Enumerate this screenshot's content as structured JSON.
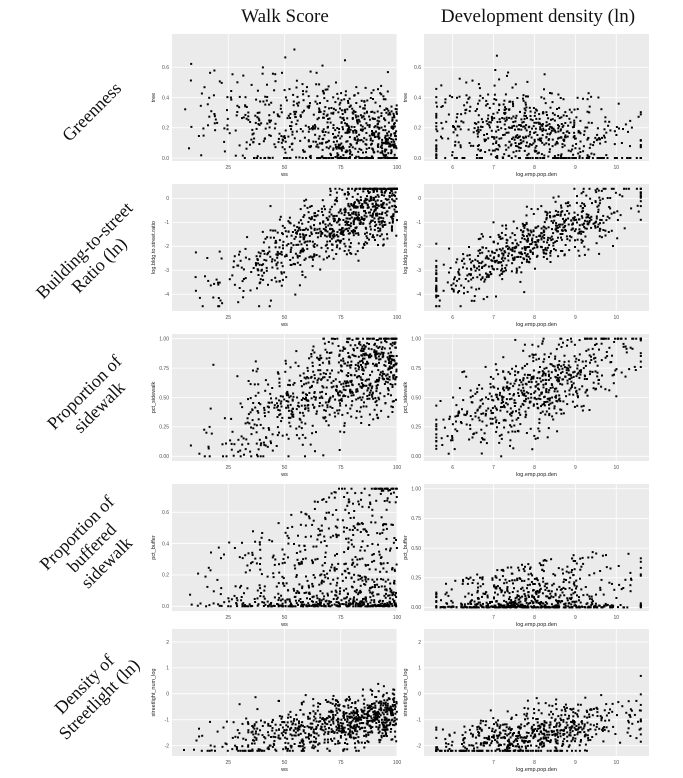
{
  "column_headers": [
    "Walk Score",
    "Development density (ln)"
  ],
  "row_labels": [
    "Greenness",
    "Building-to-street\nRatio (ln)",
    "Proportion of\nsidewalk",
    "Proportion of\nbuffered\nsidewalk",
    "Density of\nStreetlight (ln)"
  ],
  "colors": {
    "panel_bg": "#ebebeb",
    "grid": "#ffffff",
    "point": "#000000",
    "tick_text": "#4d4d4d"
  },
  "chart_data": [
    {
      "type": "scatter",
      "xlabel": "ws",
      "ylabel": "tree",
      "xlim": [
        0,
        100
      ],
      "ylim": [
        -0.02,
        0.82
      ],
      "xticks": [
        25,
        50,
        75,
        100
      ],
      "xtick_labels": [
        "25",
        "50",
        "75",
        "100"
      ],
      "yticks": [
        0.0,
        0.2,
        0.4,
        0.6
      ],
      "ytick_labels": [
        "0.0",
        "0.2",
        "0.4",
        "0.6"
      ],
      "grid": true,
      "legend": "none",
      "points": {
        "n": 800,
        "seed": 11,
        "x": {
          "dist": "skew_high",
          "min": 5,
          "max": 100,
          "power": 0.45
        },
        "y": {
          "dist": "neg_corr",
          "base": 0.32,
          "slope": -0.0018,
          "noise": 0.16,
          "min": 0.0,
          "max": 0.8
        }
      }
    },
    {
      "type": "scatter",
      "xlabel": "log.emp.pop.den",
      "ylabel": "tree",
      "xlim": [
        5.3,
        10.8
      ],
      "ylim": [
        -0.02,
        0.82
      ],
      "xticks": [
        6,
        7,
        8,
        9,
        10
      ],
      "xtick_labels": [
        "6",
        "7",
        "8",
        "9",
        "10"
      ],
      "yticks": [
        0.0,
        0.2,
        0.4,
        0.6
      ],
      "ytick_labels": [
        "0.0",
        "0.2",
        "0.4",
        "0.6"
      ],
      "grid": true,
      "legend": "none",
      "points": {
        "n": 650,
        "seed": 12,
        "x": {
          "dist": "normal",
          "mean": 8.0,
          "sd": 1.2,
          "min": 5.6,
          "max": 10.6
        },
        "y": {
          "dist": "neg_corr",
          "base": 0.36,
          "slope": -0.025,
          "noise": 0.15,
          "min": 0.0,
          "max": 0.8
        }
      }
    },
    {
      "type": "scatter",
      "xlabel": "ws",
      "ylabel": "log.bldg.to.street.ratio",
      "xlim": [
        0,
        100
      ],
      "ylim": [
        -4.7,
        0.6
      ],
      "xticks": [
        25,
        50,
        75,
        100
      ],
      "xtick_labels": [
        "25",
        "50",
        "75",
        "100"
      ],
      "yticks": [
        -4,
        -3,
        -2,
        -1,
        0
      ],
      "ytick_labels": [
        "-4",
        "-3",
        "-2",
        "-1",
        "0"
      ],
      "grid": true,
      "legend": "none",
      "points": {
        "n": 800,
        "seed": 21,
        "x": {
          "dist": "skew_high",
          "min": 5,
          "max": 100,
          "power": 0.45
        },
        "y": {
          "dist": "pos_corr",
          "base": -4.2,
          "slope": 0.042,
          "noise": 0.75,
          "min": -4.5,
          "max": 0.4
        }
      }
    },
    {
      "type": "scatter",
      "xlabel": "log.emp.pop.den",
      "ylabel": "log.bldg.to.street.ratio",
      "xlim": [
        5.3,
        10.8
      ],
      "ylim": [
        -4.7,
        0.6
      ],
      "xticks": [
        6,
        7,
        8,
        9,
        10
      ],
      "xtick_labels": [
        "6",
        "7",
        "8",
        "9",
        "10"
      ],
      "yticks": [
        -4,
        -3,
        -2,
        -1,
        0
      ],
      "ytick_labels": [
        "-4",
        "-3",
        "-2",
        "-1",
        "0"
      ],
      "grid": true,
      "legend": "none",
      "points": {
        "n": 650,
        "seed": 22,
        "x": {
          "dist": "normal",
          "mean": 8.0,
          "sd": 1.2,
          "min": 5.6,
          "max": 10.6
        },
        "y": {
          "dist": "pos_corr",
          "base": -7.8,
          "slope": 0.75,
          "noise": 0.6,
          "min": -4.5,
          "max": 0.4
        }
      }
    },
    {
      "type": "scatter",
      "xlabel": "ws",
      "ylabel": "pct_sidewalk",
      "xlim": [
        0,
        100
      ],
      "ylim": [
        -0.04,
        1.04
      ],
      "xticks": [
        25,
        50,
        75,
        100
      ],
      "xtick_labels": [
        "25",
        "50",
        "75",
        "100"
      ],
      "yticks": [
        0.0,
        0.25,
        0.5,
        0.75,
        1.0
      ],
      "ytick_labels": [
        "0.00",
        "0.25",
        "0.50",
        "0.75",
        "1.00"
      ],
      "grid": true,
      "legend": "none",
      "points": {
        "n": 800,
        "seed": 31,
        "x": {
          "dist": "skew_high",
          "min": 5,
          "max": 100,
          "power": 0.45
        },
        "y": {
          "dist": "pos_corr",
          "base": 0.0,
          "slope": 0.0085,
          "noise": 0.2,
          "min": 0.0,
          "max": 1.0
        }
      }
    },
    {
      "type": "scatter",
      "xlabel": "log.emp.pop.den",
      "ylabel": "pct_sidewalk",
      "xlim": [
        5.3,
        10.8
      ],
      "ylim": [
        -0.04,
        1.04
      ],
      "xticks": [
        6,
        7,
        8,
        9,
        10
      ],
      "xtick_labels": [
        "6",
        "7",
        "8",
        "9",
        "10"
      ],
      "yticks": [
        0.0,
        0.25,
        0.5,
        0.75,
        1.0
      ],
      "ytick_labels": [
        "0.00",
        "0.25",
        "0.50",
        "0.75",
        "1.00"
      ],
      "grid": true,
      "legend": "none",
      "points": {
        "n": 650,
        "seed": 32,
        "x": {
          "dist": "normal",
          "mean": 8.0,
          "sd": 1.2,
          "min": 5.6,
          "max": 10.6
        },
        "y": {
          "dist": "pos_corr",
          "base": -0.55,
          "slope": 0.14,
          "noise": 0.18,
          "min": 0.0,
          "max": 1.0
        }
      }
    },
    {
      "type": "scatter",
      "xlabel": "ws",
      "ylabel": "pct_buffer",
      "xlim": [
        0,
        100
      ],
      "ylim": [
        -0.03,
        0.78
      ],
      "xticks": [
        25,
        50,
        75,
        100
      ],
      "xtick_labels": [
        "25",
        "50",
        "75",
        "100"
      ],
      "yticks": [
        0.0,
        0.2,
        0.4,
        0.6
      ],
      "ytick_labels": [
        "0.0",
        "0.2",
        "0.4",
        "0.6"
      ],
      "grid": true,
      "legend": "none",
      "points": {
        "n": 800,
        "seed": 41,
        "x": {
          "dist": "skew_high",
          "min": 5,
          "max": 100,
          "power": 0.45
        },
        "y": {
          "dist": "skew_low",
          "min": 0.0,
          "max": 0.75,
          "power": 2.6,
          "scale_with_x": 0.9
        }
      }
    },
    {
      "type": "scatter",
      "xlabel": "log.emp.pop.den",
      "ylabel": "pct_buffer",
      "xlim": [
        5.3,
        10.8
      ],
      "ylim": [
        -0.03,
        1.04
      ],
      "xticks": [
        7,
        8,
        9,
        10
      ],
      "xtick_labels": [
        "7",
        "8",
        "9",
        "10"
      ],
      "yticks": [
        0.0,
        0.25,
        0.5,
        0.75,
        1.0
      ],
      "ytick_labels": [
        "0.00",
        "0.25",
        "0.50",
        "0.75",
        "1.00"
      ],
      "grid": true,
      "legend": "none",
      "points": {
        "n": 650,
        "seed": 42,
        "x": {
          "dist": "normal",
          "mean": 8.0,
          "sd": 1.2,
          "min": 5.6,
          "max": 10.6
        },
        "y": {
          "dist": "skew_low",
          "min": 0.0,
          "max": 0.6,
          "power": 2.8,
          "scale_with_x": 0.6
        }
      }
    },
    {
      "type": "scatter",
      "xlabel": "ws",
      "ylabel": "streetlight_num_log",
      "xlim": [
        0,
        100
      ],
      "ylim": [
        -2.4,
        2.5
      ],
      "xticks": [
        25,
        50,
        75,
        100
      ],
      "xtick_labels": [
        "25",
        "50",
        "75",
        "100"
      ],
      "yticks": [
        -2,
        -1,
        0,
        1,
        2
      ],
      "ytick_labels": [
        "-2",
        "-1",
        "0",
        "1",
        "2"
      ],
      "grid": true,
      "legend": "none",
      "points": {
        "n": 800,
        "seed": 51,
        "x": {
          "dist": "skew_high",
          "min": 5,
          "max": 100,
          "power": 0.45
        },
        "y": {
          "dist": "pos_corr",
          "base": -2.2,
          "slope": 0.014,
          "noise": 0.5,
          "min": -2.2,
          "max": 2.2
        }
      }
    },
    {
      "type": "scatter",
      "xlabel": "log.emp.pop.den",
      "ylabel": "streetlight_num_log",
      "xlim": [
        5.3,
        10.8
      ],
      "ylim": [
        -2.4,
        2.5
      ],
      "xticks": [
        7,
        8,
        9,
        10
      ],
      "xtick_labels": [
        "7",
        "8",
        "9",
        "10"
      ],
      "yticks": [
        -2,
        -1,
        0,
        1,
        2
      ],
      "ytick_labels": [
        "-2",
        "-1",
        "0",
        "1",
        "2"
      ],
      "grid": true,
      "legend": "none",
      "points": {
        "n": 650,
        "seed": 52,
        "x": {
          "dist": "normal",
          "mean": 8.0,
          "sd": 1.2,
          "min": 5.6,
          "max": 10.6
        },
        "y": {
          "dist": "pos_corr",
          "base": -3.8,
          "slope": 0.28,
          "noise": 0.5,
          "min": -2.2,
          "max": 2.2
        }
      }
    }
  ]
}
